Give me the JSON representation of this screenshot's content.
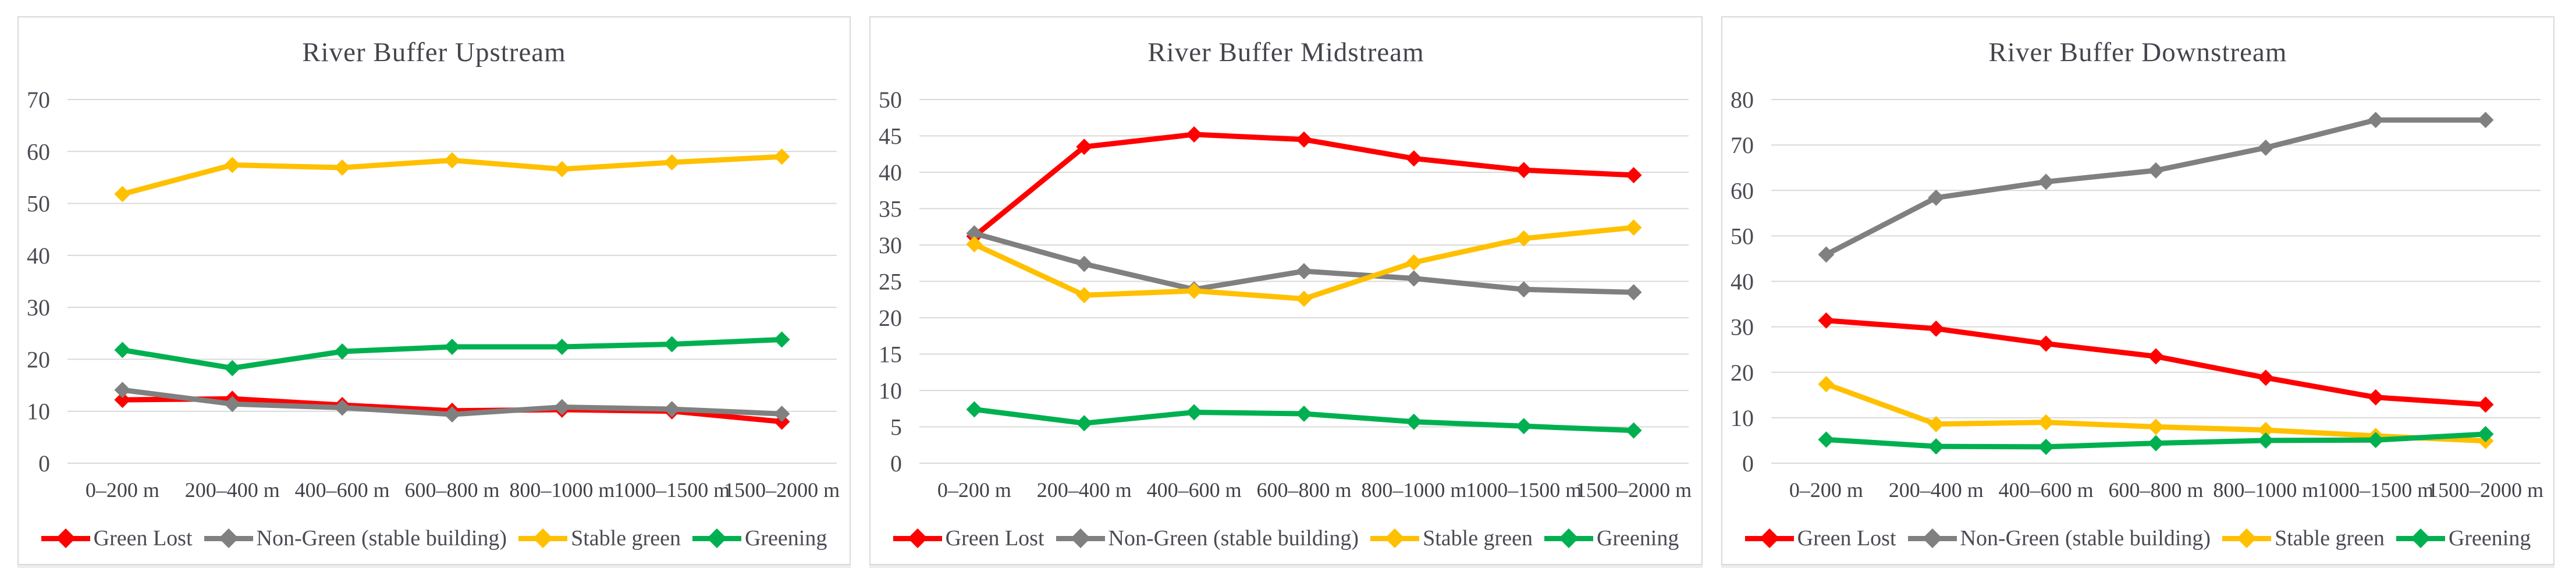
{
  "theme": {
    "background": "#ffffff",
    "panel_border": "#d9d9d9",
    "grid_color": "#d9d9d9",
    "title_color": "#45454e",
    "axis_text_color": "#4b4b54",
    "series_colors": {
      "green_lost": "#ff0000",
      "non_green": "#808080",
      "stable_green": "#ffc000",
      "greening": "#00b050"
    }
  },
  "chart_data": [
    {
      "type": "line",
      "title": "River Buffer Upstream",
      "xlabel": "",
      "ylabel": "",
      "ylim": [
        0,
        70
      ],
      "y_step": 10,
      "grid": true,
      "legend_position": "bottom",
      "categories": [
        "0–200 m",
        "200–400 m",
        "400–600 m",
        "600–800 m",
        "800–1000 m",
        "1000–1500 m",
        "1500–2000 m"
      ],
      "series": [
        {
          "name": "Green Lost",
          "color": "#ff0000",
          "values": [
            12.2,
            12.4,
            11.2,
            10.1,
            10.3,
            10.0,
            8.0
          ]
        },
        {
          "name": "Non-Green (stable building)",
          "color": "#808080",
          "values": [
            14.1,
            11.4,
            10.7,
            9.4,
            10.8,
            10.4,
            9.5
          ]
        },
        {
          "name": "Stable green",
          "color": "#ffc000",
          "values": [
            51.8,
            57.4,
            56.9,
            58.3,
            56.6,
            57.9,
            59.0
          ]
        },
        {
          "name": "Greening",
          "color": "#00b050",
          "values": [
            21.8,
            18.3,
            21.5,
            22.4,
            22.4,
            22.9,
            23.8
          ]
        }
      ]
    },
    {
      "type": "line",
      "title": "River Buffer Midstream",
      "xlabel": "",
      "ylabel": "",
      "ylim": [
        0,
        50
      ],
      "y_step": 5,
      "grid": true,
      "legend_position": "bottom",
      "categories": [
        "0–200 m",
        "200–400 m",
        "400–600 m",
        "600–800 m",
        "800–1000 m",
        "1000–1500 m",
        "1500–2000 m"
      ],
      "series": [
        {
          "name": "Green Lost",
          "color": "#ff0000",
          "values": [
            31.2,
            43.5,
            45.2,
            44.5,
            41.9,
            40.3,
            39.6
          ]
        },
        {
          "name": "Non-Green (stable building)",
          "color": "#808080",
          "values": [
            31.6,
            27.4,
            23.9,
            26.4,
            25.4,
            23.9,
            23.5
          ]
        },
        {
          "name": "Stable green",
          "color": "#ffc000",
          "values": [
            30.1,
            23.1,
            23.7,
            22.6,
            27.6,
            30.9,
            32.4
          ]
        },
        {
          "name": "Greening",
          "color": "#00b050",
          "values": [
            7.4,
            5.5,
            7.0,
            6.8,
            5.7,
            5.1,
            4.5
          ]
        }
      ]
    },
    {
      "type": "line",
      "title": "River Buffer Downstream",
      "xlabel": "",
      "ylabel": "",
      "ylim": [
        0,
        80
      ],
      "y_step": 10,
      "grid": true,
      "legend_position": "bottom",
      "categories": [
        "0–200 m",
        "200–400 m",
        "400–600 m",
        "600–800 m",
        "800–1000 m",
        "1000–1500 m",
        "1500–2000 m"
      ],
      "series": [
        {
          "name": "Green Lost",
          "color": "#ff0000",
          "values": [
            31.4,
            29.6,
            26.3,
            23.5,
            18.8,
            14.5,
            12.9
          ]
        },
        {
          "name": "Non-Green (stable building)",
          "color": "#808080",
          "values": [
            45.9,
            58.4,
            61.9,
            64.4,
            69.4,
            75.5,
            75.5
          ]
        },
        {
          "name": "Stable green",
          "color": "#ffc000",
          "values": [
            17.4,
            8.6,
            9.0,
            8.0,
            7.3,
            6.0,
            4.9
          ]
        },
        {
          "name": "Greening",
          "color": "#00b050",
          "values": [
            5.2,
            3.7,
            3.6,
            4.4,
            5.0,
            5.1,
            6.4
          ]
        }
      ]
    }
  ]
}
